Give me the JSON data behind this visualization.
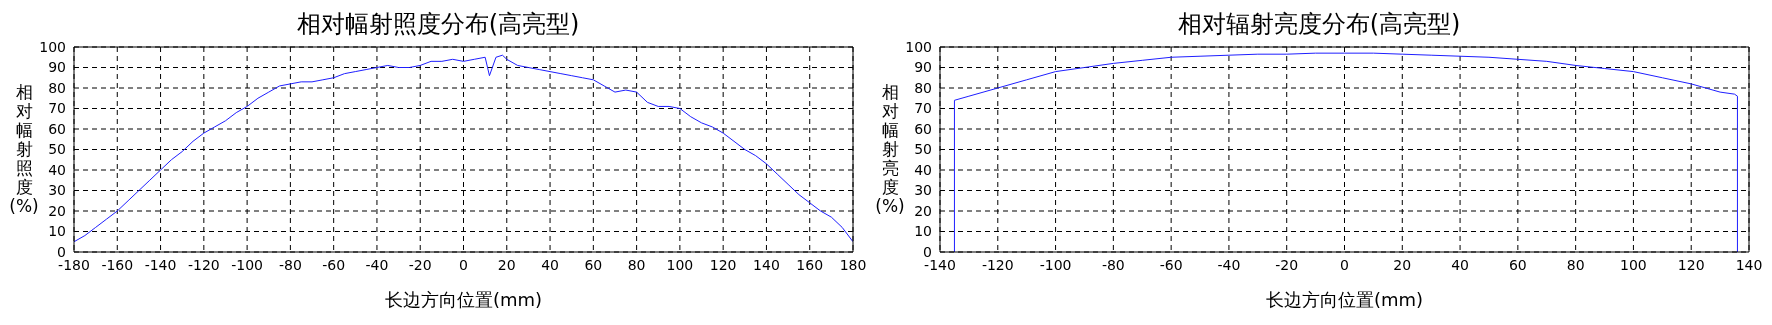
{
  "chart_data": [
    {
      "type": "line",
      "title": "相对幅射照度分布(高亮型)",
      "xlabel": "长边方向位置(mm)",
      "ylabel": "相对幅射照度(%)",
      "x": [
        -180,
        -175,
        -170,
        -165,
        -160,
        -155,
        -150,
        -145,
        -140,
        -135,
        -130,
        -125,
        -120,
        -115,
        -110,
        -105,
        -100,
        -95,
        -90,
        -85,
        -80,
        -75,
        -70,
        -65,
        -60,
        -55,
        -50,
        -45,
        -40,
        -35,
        -30,
        -25,
        -20,
        -15,
        -10,
        -5,
        0,
        5,
        10,
        12,
        15,
        18,
        20,
        25,
        30,
        35,
        40,
        45,
        50,
        55,
        60,
        65,
        70,
        75,
        80,
        85,
        90,
        95,
        100,
        105,
        110,
        115,
        120,
        125,
        130,
        135,
        140,
        145,
        150,
        155,
        160,
        165,
        170,
        175,
        180
      ],
      "series": [
        {
          "color": "#1f1fff",
          "values": [
            5,
            8,
            12,
            16,
            20,
            25,
            30,
            35,
            40,
            45,
            49,
            54,
            58,
            61,
            64,
            68,
            71,
            75,
            78,
            81,
            82,
            83,
            83,
            84,
            85,
            87,
            88,
            89,
            90,
            91,
            90,
            90,
            91,
            93,
            93,
            94,
            93,
            94,
            95,
            86,
            95,
            96,
            94,
            91,
            90,
            89,
            88,
            87,
            86,
            85,
            84,
            81,
            78,
            79,
            78,
            73,
            71,
            71,
            70,
            66,
            63,
            61,
            58,
            54,
            50,
            47,
            43,
            38,
            33,
            28,
            24,
            20,
            17,
            12,
            5
          ]
        }
      ],
      "xlim": [
        -180,
        180
      ],
      "xticks": [
        -180,
        -160,
        -140,
        -120,
        -100,
        -80,
        -60,
        -40,
        -20,
        0,
        20,
        40,
        60,
        80,
        100,
        120,
        140,
        160,
        180
      ],
      "ylim": [
        0,
        100
      ],
      "yticks": [
        0,
        10,
        20,
        30,
        40,
        50,
        60,
        70,
        80,
        90,
        100
      ],
      "grid": true,
      "line_style": "solid",
      "marker": "none"
    },
    {
      "type": "line",
      "title": "相对辐射亮度分布(高亮型)",
      "xlabel": "长边方向位置(mm)",
      "ylabel": "相对幅射亮度(%)",
      "x": [
        -135,
        -135,
        -130,
        -120,
        -110,
        -100,
        -90,
        -80,
        -70,
        -60,
        -50,
        -40,
        -30,
        -20,
        -10,
        0,
        10,
        20,
        30,
        40,
        50,
        60,
        70,
        80,
        90,
        100,
        110,
        120,
        130,
        135,
        136,
        136
      ],
      "series": [
        {
          "color": "#1f1fff",
          "values": [
            0,
            74,
            76,
            80,
            84,
            88,
            90,
            92,
            93.5,
            95,
            95.5,
            96,
            96.5,
            96.5,
            97,
            97,
            97,
            96.5,
            96,
            95.5,
            95,
            94,
            93,
            91,
            89.5,
            88,
            85,
            82,
            78,
            77,
            76,
            0
          ]
        }
      ],
      "xlim": [
        -140,
        140
      ],
      "xticks": [
        -140,
        -120,
        -100,
        -80,
        -60,
        -40,
        -20,
        0,
        20,
        40,
        60,
        80,
        100,
        120,
        140
      ],
      "ylim": [
        0,
        100
      ],
      "yticks": [
        0,
        10,
        20,
        30,
        40,
        50,
        60,
        70,
        80,
        90,
        100
      ],
      "grid": true,
      "line_style": "solid",
      "marker": "none"
    }
  ]
}
